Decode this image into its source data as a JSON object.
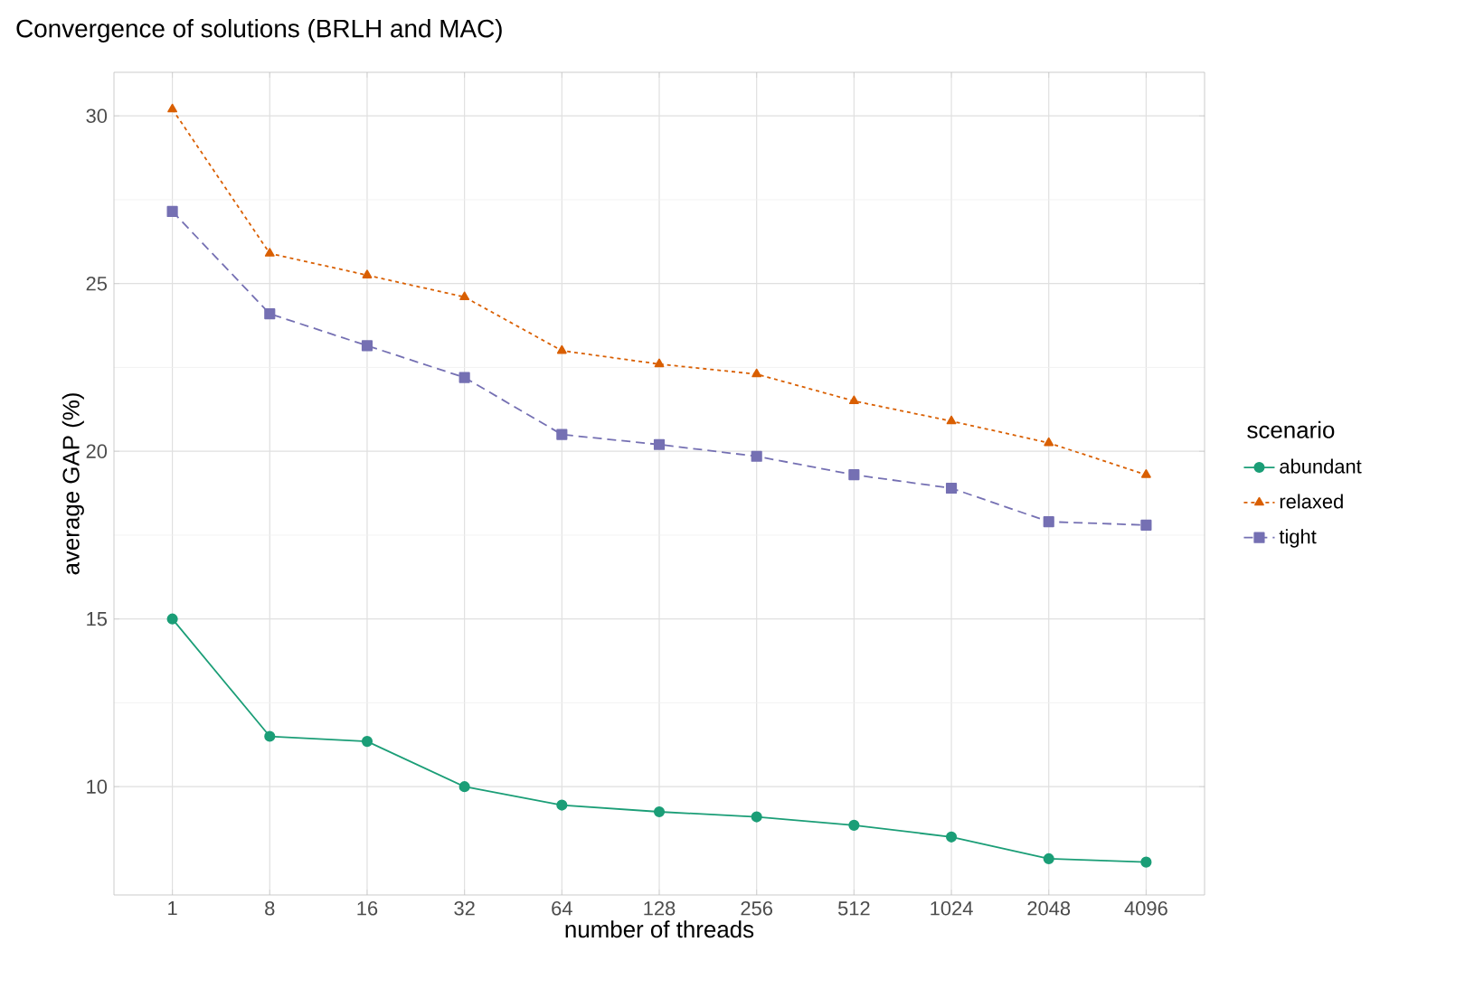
{
  "chart_data": {
    "type": "line",
    "title": "Convergence of solutions (BRLH and MAC)",
    "xlabel": "number of threads",
    "ylabel": "average GAP (%)",
    "legend_title": "scenario",
    "categories": [
      "1",
      "8",
      "16",
      "32",
      "64",
      "128",
      "256",
      "512",
      "1024",
      "2048",
      "4096"
    ],
    "series": [
      {
        "name": "abundant",
        "color": "#1b9e77",
        "marker": "circle",
        "line_style": "solid",
        "values": [
          15.0,
          11.5,
          11.35,
          10.0,
          9.45,
          9.25,
          9.1,
          8.85,
          8.5,
          7.85,
          7.75
        ]
      },
      {
        "name": "relaxed",
        "color": "#d95f02",
        "marker": "triangle",
        "line_style": "dotted",
        "values": [
          30.2,
          25.9,
          25.25,
          24.6,
          23.0,
          22.6,
          22.3,
          21.5,
          20.9,
          20.25,
          19.3
        ]
      },
      {
        "name": "tight",
        "color": "#7570b3",
        "marker": "square",
        "line_style": "dashed",
        "values": [
          27.15,
          24.1,
          23.15,
          22.2,
          20.5,
          20.2,
          19.85,
          19.3,
          18.9,
          17.9,
          17.8
        ]
      }
    ],
    "ylim": [
      6.77,
      31.3
    ],
    "yticks": [
      10,
      15,
      20,
      25,
      30
    ],
    "grid": true,
    "legend": "right"
  }
}
